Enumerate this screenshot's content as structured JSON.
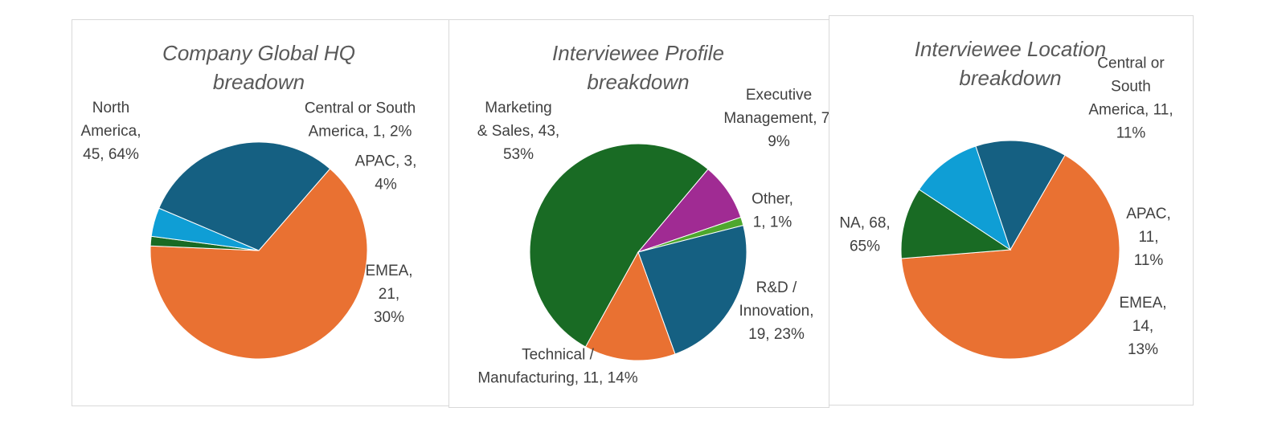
{
  "chart_data": [
    {
      "type": "pie",
      "title": [
        "Company Global HQ",
        "breadown"
      ],
      "slices": [
        {
          "label": [
            "North",
            "America,",
            "45, 64%"
          ],
          "value": 45,
          "percent": "64%",
          "color": "#E97132"
        },
        {
          "label": [
            "Central or South",
            "America, 1, 2%"
          ],
          "value": 1,
          "percent": "2%",
          "color": "#196B24"
        },
        {
          "label": [
            "APAC, 3,",
            "4%"
          ],
          "value": 3,
          "percent": "4%",
          "color": "#0F9ED5"
        },
        {
          "label": [
            "EMEA,",
            "21,",
            "30%"
          ],
          "value": 21,
          "percent": "30%",
          "color": "#156082"
        }
      ]
    },
    {
      "type": "pie",
      "title": [
        "Interviewee Profile",
        "breakdown"
      ],
      "slices": [
        {
          "label": [
            "Marketing",
            "& Sales, 43,",
            "53%"
          ],
          "value": 43,
          "percent": "53%",
          "color": "#196B24"
        },
        {
          "label": [
            "Executive",
            "Management, 7,",
            "9%"
          ],
          "value": 7,
          "percent": "9%",
          "color": "#A02B93"
        },
        {
          "label": [
            "Other,",
            "1, 1%"
          ],
          "value": 1,
          "percent": "1%",
          "color": "#4EA72E"
        },
        {
          "label": [
            "R&D /",
            "Innovation,",
            "19, 23%"
          ],
          "value": 19,
          "percent": "23%",
          "color": "#156082"
        },
        {
          "label": [
            "Technical /",
            "Manufacturing, 11, 14%"
          ],
          "value": 11,
          "percent": "14%",
          "color": "#E97132"
        }
      ]
    },
    {
      "type": "pie",
      "title": [
        "Interviewee Location",
        "breakdown"
      ],
      "slices": [
        {
          "label": [
            "NA, 68,",
            "65%"
          ],
          "value": 68,
          "percent": "65%",
          "color": "#E97132"
        },
        {
          "label": [
            "Central or",
            "South",
            "America, 11,",
            "11%"
          ],
          "value": 11,
          "percent": "11%",
          "color": "#196B24"
        },
        {
          "label": [
            "APAC,",
            "11,",
            "11%"
          ],
          "value": 11,
          "percent": "11%",
          "color": "#0F9ED5"
        },
        {
          "label": [
            "EMEA,",
            "14,",
            "13%"
          ],
          "value": 14,
          "percent": "13%",
          "color": "#156082"
        }
      ]
    }
  ]
}
